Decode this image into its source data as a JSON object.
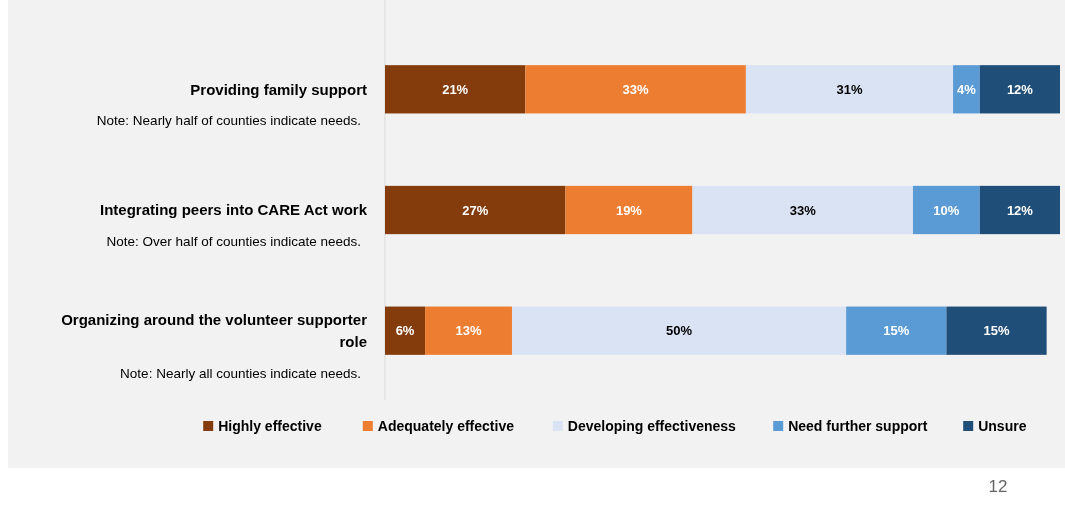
{
  "chart_data": {
    "type": "bar",
    "orientation": "horizontal",
    "stacked": true,
    "legend": "bottom",
    "tick_labels": "y",
    "categories": [
      "Providing family support",
      "Integrating peers into CARE Act work",
      "Organizing around the volunteer supporter role"
    ],
    "series": [
      {
        "name": "Highly effective",
        "color": "#843c0c",
        "values": [
          21,
          27,
          6
        ],
        "value_labels": [
          "21%",
          "27%",
          "6%"
        ]
      },
      {
        "name": "Adequately effective",
        "color": "#ed7d31",
        "values": [
          33,
          19,
          13
        ],
        "value_labels": [
          "33%",
          "19%",
          "13%"
        ]
      },
      {
        "name": "Developing effectiveness",
        "color": "#dae3f3",
        "values": [
          31,
          33,
          50
        ],
        "value_labels": [
          "31%",
          "33%",
          "50%"
        ]
      },
      {
        "name": "Need further support",
        "color": "#5b9bd5",
        "values": [
          4,
          10,
          15
        ],
        "value_labels": [
          "4%",
          "10%",
          "15%"
        ]
      },
      {
        "name": "Unsure",
        "color": "#1f4e79",
        "values": [
          12,
          12,
          15
        ],
        "value_labels": [
          "12%",
          "12%",
          "15%"
        ]
      }
    ],
    "annotations": [
      "Note: Nearly half of counties indicate needs.",
      "Note: Over half of counties indicate needs.",
      "Note: Nearly all counties indicate needs.",
      "12"
    ]
  }
}
